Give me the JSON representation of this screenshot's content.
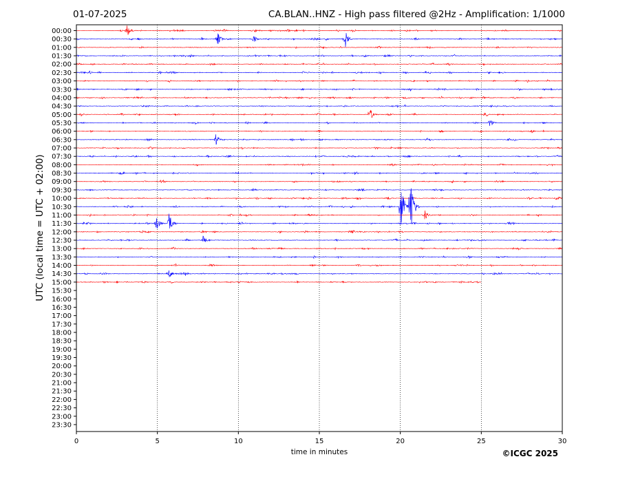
{
  "header": {
    "date": "01-07-2025",
    "title": "CA.BLAN..HNZ - High pass filtered @2Hz - Amplification: 1/1000"
  },
  "footer": {
    "copyright": "©ICGC 2025"
  },
  "chart_data": {
    "type": "line",
    "title": "CA.BLAN..HNZ - High pass filtered @2Hz - Amplification: 1/1000",
    "xlabel": "time in minutes",
    "ylabel": "UTC (local time = UTC + 02:00)",
    "xlim": [
      0,
      30
    ],
    "x_ticks": [
      "0",
      "5",
      "10",
      "15",
      "20",
      "25",
      "30"
    ],
    "x_tick_values": [
      0,
      5,
      10,
      15,
      20,
      25,
      30
    ],
    "y_ticks": [
      "00:00",
      "00:30",
      "01:00",
      "01:30",
      "02:00",
      "02:30",
      "03:00",
      "03:30",
      "04:00",
      "04:30",
      "05:00",
      "05:30",
      "06:00",
      "06:30",
      "07:00",
      "07:30",
      "08:00",
      "08:30",
      "09:00",
      "09:30",
      "10:00",
      "10:30",
      "11:00",
      "11:30",
      "12:00",
      "12:30",
      "13:00",
      "13:30",
      "14:00",
      "14:30",
      "15:00",
      "15:30",
      "16:00",
      "16:30",
      "17:00",
      "17:30",
      "18:00",
      "18:30",
      "19:00",
      "19:30",
      "20:00",
      "20:30",
      "21:00",
      "21:30",
      "22:00",
      "22:30",
      "23:00",
      "23:30"
    ],
    "trace_colors": [
      "#ff0000",
      "#0000ff"
    ],
    "recorded_rows": 31,
    "last_row_end_minute": 25,
    "vertical_grid_minutes": [
      5,
      10,
      15,
      20,
      25
    ],
    "events": [
      {
        "row": 0,
        "minute": 3.1,
        "amp": 0.9
      },
      {
        "row": 1,
        "minute": 8.7,
        "amp": 0.9
      },
      {
        "row": 1,
        "minute": 10.9,
        "amp": 0.7
      },
      {
        "row": 1,
        "minute": 16.6,
        "amp": 1.1
      },
      {
        "row": 10,
        "minute": 18.1,
        "amp": 0.9
      },
      {
        "row": 11,
        "minute": 25.5,
        "amp": 0.7
      },
      {
        "row": 13,
        "minute": 8.6,
        "amp": 0.7
      },
      {
        "row": 21,
        "minute": 20.0,
        "amp": 3.5
      },
      {
        "row": 21,
        "minute": 20.6,
        "amp": 4.2
      },
      {
        "row": 22,
        "minute": 21.5,
        "amp": 0.7
      },
      {
        "row": 23,
        "minute": 4.9,
        "amp": 1.2
      },
      {
        "row": 23,
        "minute": 5.7,
        "amp": 1.4
      },
      {
        "row": 25,
        "minute": 7.8,
        "amp": 0.6
      },
      {
        "row": 29,
        "minute": 5.7,
        "amp": 0.6
      }
    ]
  }
}
